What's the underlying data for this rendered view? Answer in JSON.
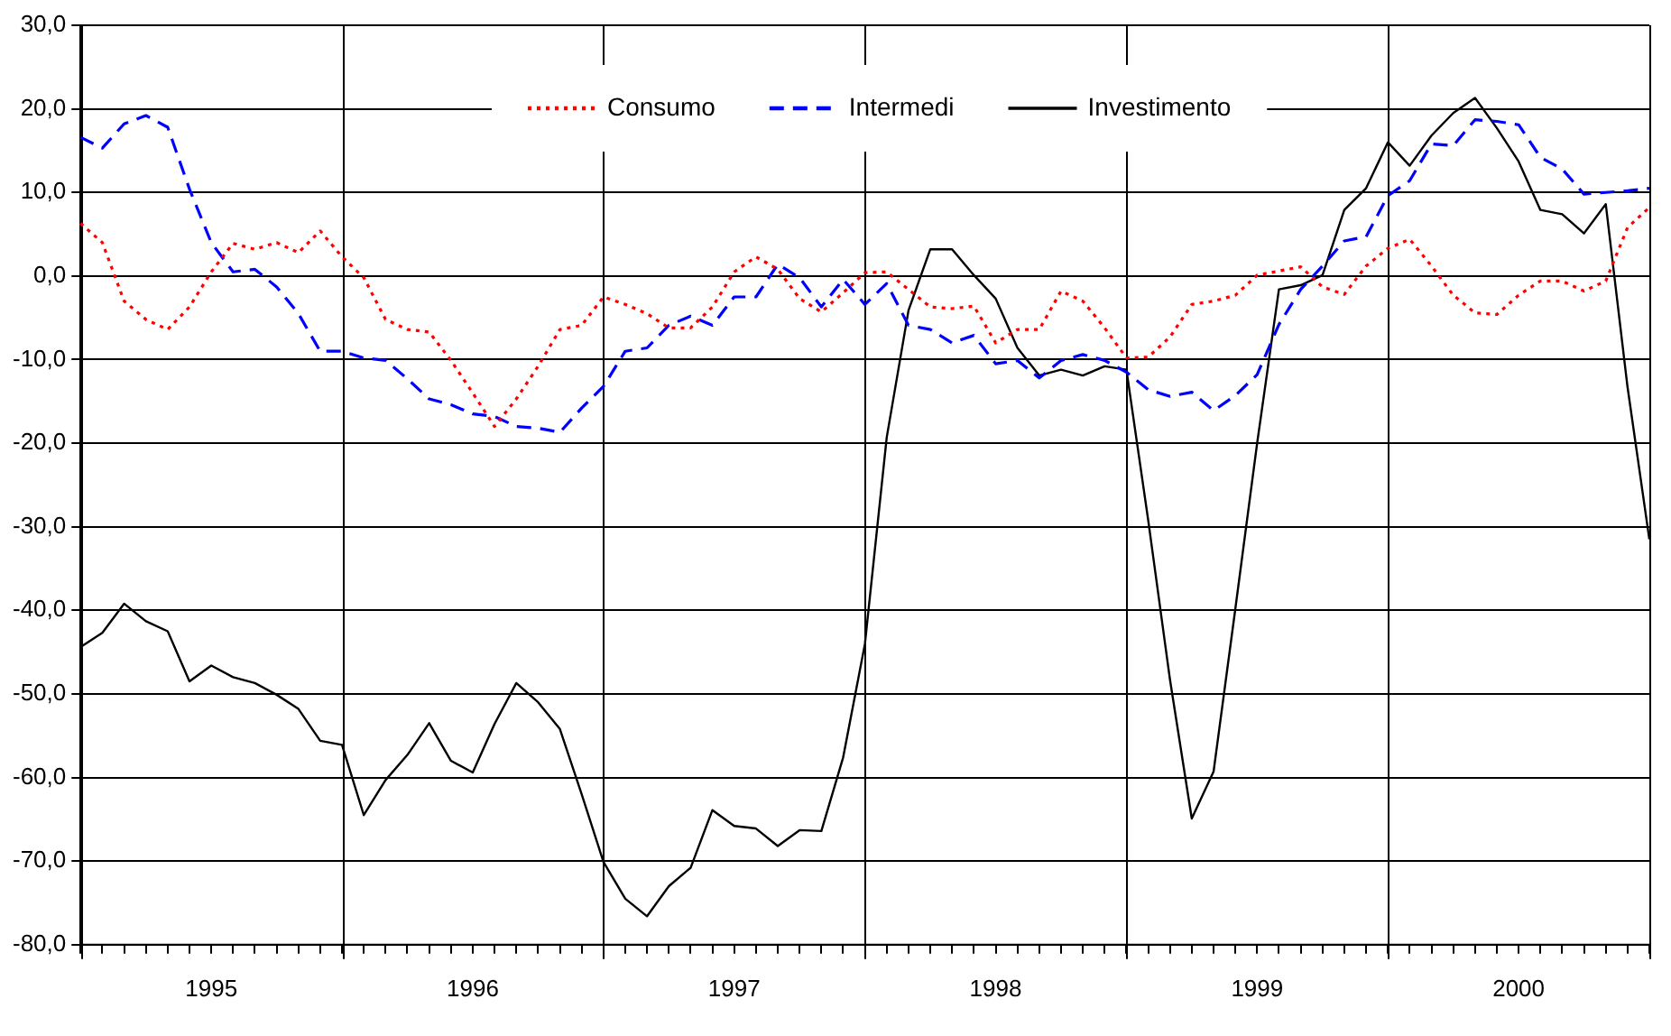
{
  "chart_data": {
    "type": "line",
    "legend": "top",
    "grid": true,
    "categories": [
      null,
      null,
      null,
      null,
      null,
      null,
      "1995",
      null,
      null,
      null,
      null,
      null,
      null,
      null,
      null,
      null,
      null,
      null,
      "1996",
      null,
      null,
      null,
      null,
      null,
      null,
      null,
      null,
      null,
      null,
      null,
      "1997",
      null,
      null,
      null,
      null,
      null,
      null,
      null,
      null,
      null,
      null,
      null,
      "1998",
      null,
      null,
      null,
      null,
      null,
      null,
      null,
      null,
      null,
      null,
      null,
      "1999",
      null,
      null,
      null,
      null,
      null,
      null,
      null,
      null,
      null,
      null,
      null,
      "2000",
      null,
      null,
      null,
      null,
      null,
      null
    ],
    "ylim": [
      -80,
      30
    ],
    "yticks": [
      {
        "value": -80,
        "label": "-80,0"
      },
      {
        "value": -70,
        "label": "-70,0"
      },
      {
        "value": -60,
        "label": "-60,0"
      },
      {
        "value": -50,
        "label": "-50,0"
      },
      {
        "value": -40,
        "label": "-40,0"
      },
      {
        "value": -30,
        "label": "-30,0"
      },
      {
        "value": -20,
        "label": "-20,0"
      },
      {
        "value": -10,
        "label": "-10,0"
      },
      {
        "value": 0,
        "label": "0,0"
      },
      {
        "value": 10,
        "label": "10,0"
      },
      {
        "value": 20,
        "label": "20,0"
      },
      {
        "value": 30,
        "label": "30,0"
      }
    ],
    "series": [
      {
        "name": "Consumo",
        "color": "#ff0000",
        "line_style": "dotted",
        "values": [
          6.3,
          4.0,
          -3.0,
          -5.2,
          -6.4,
          -3.7,
          0.5,
          3.9,
          3.2,
          4.0,
          2.8,
          5.4,
          2.3,
          -0.2,
          -5.2,
          -6.4,
          -6.7,
          -10.1,
          -14.0,
          -18.0,
          -14.7,
          -10.8,
          -6.4,
          -5.9,
          -2.5,
          -3.4,
          -4.5,
          -6.2,
          -6.2,
          -3.7,
          0.5,
          2.3,
          0.8,
          -2.7,
          -4.3,
          -2.0,
          0.4,
          0.5,
          -1.6,
          -3.7,
          -3.9,
          -3.6,
          -8.0,
          -6.4,
          -6.4,
          -1.8,
          -3.0,
          -6.2,
          -9.8,
          -9.7,
          -7.3,
          -3.4,
          -3.0,
          -2.3,
          0.1,
          0.6,
          1.1,
          -1.3,
          -2.2,
          1.2,
          3.3,
          4.4,
          1.2,
          -2.3,
          -4.4,
          -4.6,
          -2.3,
          -0.6,
          -0.6,
          -1.8,
          -0.6,
          5.8,
          8.2
        ]
      },
      {
        "name": "Intermedi",
        "color": "#0000ff",
        "line_style": "dashed",
        "values": [
          16.6,
          15.3,
          18.2,
          19.2,
          17.8,
          10.4,
          4.0,
          0.5,
          0.8,
          -1.3,
          -4.5,
          -9.0,
          -9.0,
          -9.8,
          -10.1,
          -12.3,
          -14.7,
          -15.4,
          -16.5,
          -16.8,
          -18.0,
          -18.2,
          -18.7,
          -15.8,
          -13.2,
          -9.0,
          -8.6,
          -5.9,
          -4.8,
          -5.9,
          -2.5,
          -2.5,
          1.4,
          -0.2,
          -3.7,
          -0.4,
          -3.4,
          -0.9,
          -5.9,
          -6.4,
          -8.0,
          -7.1,
          -10.5,
          -10.1,
          -12.2,
          -10.1,
          -9.4,
          -10.1,
          -11.5,
          -13.6,
          -14.4,
          -13.9,
          -16.1,
          -14.3,
          -11.8,
          -5.8,
          -1.6,
          1.2,
          4.2,
          4.7,
          9.6,
          11.4,
          15.8,
          15.6,
          18.7,
          18.5,
          18.1,
          14.2,
          12.8,
          9.8,
          10.0,
          10.2,
          10.5
        ]
      },
      {
        "name": "Investimento",
        "color": "#000000",
        "line_style": "solid",
        "values": [
          -44.4,
          -42.7,
          -39.2,
          -41.3,
          -42.5,
          -48.5,
          -46.6,
          -48.0,
          -48.7,
          -50.1,
          -51.8,
          -55.6,
          -56.1,
          -64.5,
          -60.3,
          -57.3,
          -53.5,
          -58.0,
          -59.4,
          -53.6,
          -48.7,
          -51.0,
          -54.2,
          -62.0,
          -70.1,
          -74.5,
          -76.6,
          -73.0,
          -70.8,
          -63.9,
          -65.8,
          -66.1,
          -68.2,
          -66.3,
          -66.4,
          -57.6,
          -44.0,
          -19.3,
          -4.1,
          3.2,
          3.2,
          0.1,
          -2.7,
          -8.6,
          -11.9,
          -11.2,
          -11.9,
          -10.8,
          -11.2,
          -29.2,
          -48.3,
          -64.9,
          -59.3,
          -39.8,
          -20.0,
          -1.6,
          -1.1,
          0.1,
          7.9,
          10.5,
          16.0,
          13.2,
          16.8,
          19.5,
          21.3,
          17.7,
          13.7,
          7.9,
          7.4,
          5.1,
          8.6,
          -13.3,
          -31.5
        ]
      }
    ]
  }
}
